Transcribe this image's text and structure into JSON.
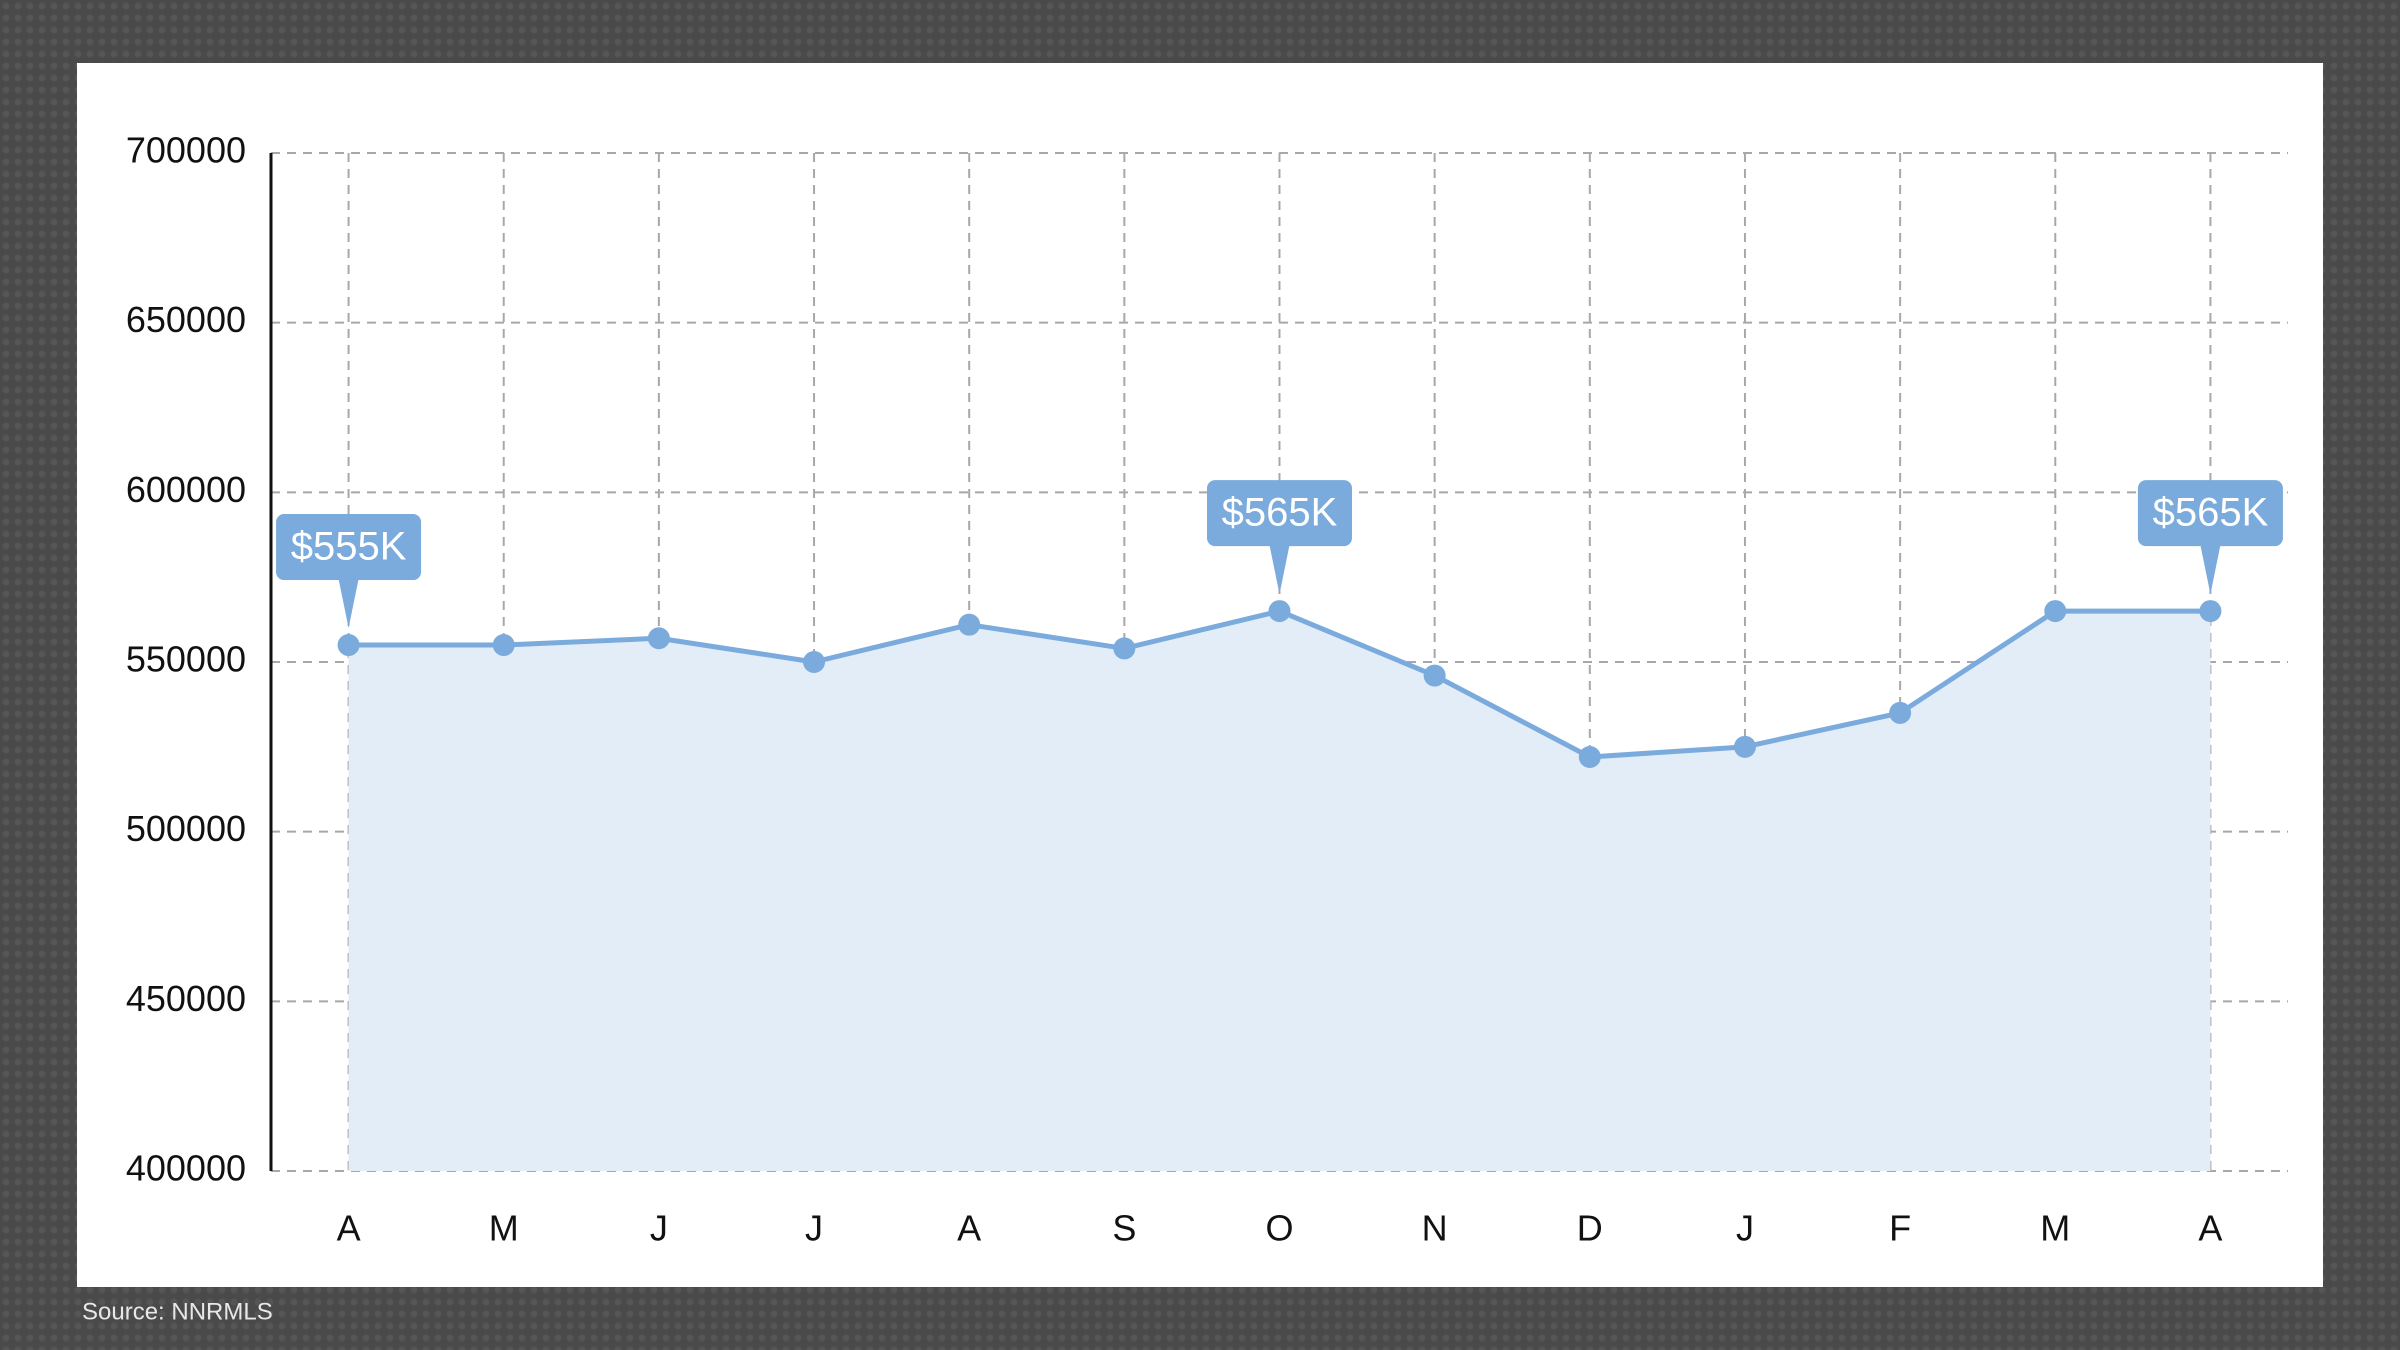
{
  "chart_data": {
    "type": "line",
    "categories": [
      "A",
      "M",
      "J",
      "J",
      "A",
      "S",
      "O",
      "N",
      "D",
      "J",
      "F",
      "M",
      "A"
    ],
    "series": [
      {
        "color": "#7aabdc",
        "values": [
          555000,
          555000,
          557000,
          550000,
          561000,
          554000,
          565000,
          546000,
          522000,
          525000,
          535000,
          565000,
          565000
        ],
        "value_labels": [
          "$555K",
          null,
          null,
          null,
          null,
          null,
          "$565K",
          null,
          null,
          null,
          null,
          null,
          "$565K"
        ]
      }
    ],
    "area_color": "#e3edf8",
    "ylim": [
      400000,
      700000
    ],
    "yticks": [
      400000,
      450000,
      500000,
      550000,
      600000,
      650000,
      700000
    ],
    "grid": true,
    "source": "Source: NNRMLS"
  }
}
